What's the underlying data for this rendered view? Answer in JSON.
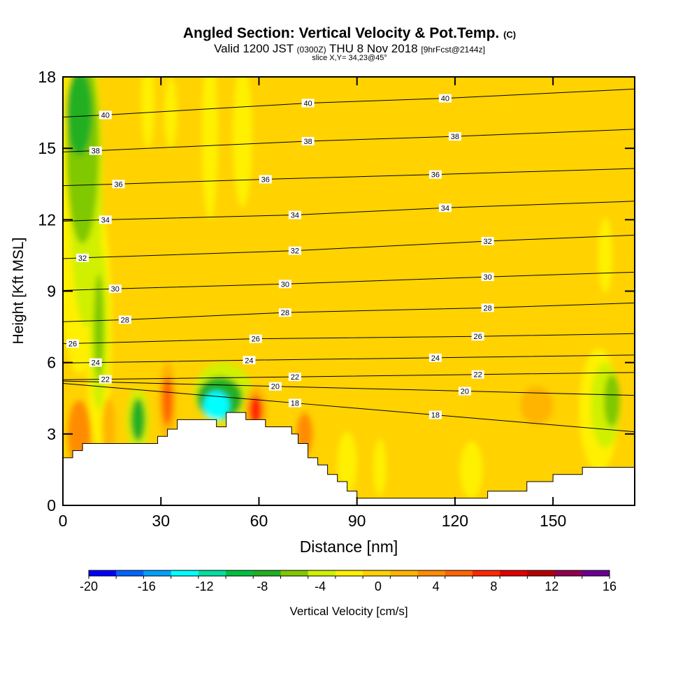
{
  "chart_data": {
    "type": "heatmap",
    "title_main": "Angled Section: Vertical Velocity & Pot.Temp.",
    "title_unit": "(C)",
    "subtitle_a": "Valid 1200 JST",
    "subtitle_b": "(0300Z)",
    "subtitle_c": "THU 8 Nov 2018",
    "subtitle_d": "[9hrFcst@2144z]",
    "slice_label": "slice X,Y= 34,23@45°",
    "xlabel": "Distance [nm]",
    "ylabel": "Height [Kft MSL]",
    "xlim": [
      0,
      175
    ],
    "ylim": [
      0,
      18
    ],
    "x_ticks": [
      0,
      30,
      60,
      90,
      120,
      150
    ],
    "y_ticks": [
      0,
      3,
      6,
      9,
      12,
      15,
      18
    ],
    "colorbar": {
      "label": "Vertical Velocity [cm/s]",
      "min": -20,
      "max": 16,
      "step": 2,
      "tick_labels": [
        -20,
        -16,
        -12,
        -8,
        -4,
        0,
        4,
        8,
        12,
        16
      ],
      "colors": [
        "#0000ff",
        "#0064ff",
        "#00a0ff",
        "#00ffff",
        "#00e0a0",
        "#00c040",
        "#20b020",
        "#80c800",
        "#d0f000",
        "#fff000",
        "#ffd200",
        "#ffb400",
        "#ff8c00",
        "#ff6400",
        "#ff2800",
        "#e00000",
        "#b40000",
        "#900050",
        "#6a0090"
      ]
    },
    "background_value": 0,
    "terrain_profile": [
      [
        0,
        2
      ],
      [
        3,
        2
      ],
      [
        3,
        2.3
      ],
      [
        6,
        2.3
      ],
      [
        6,
        2.6
      ],
      [
        21,
        2.6
      ],
      [
        21,
        2.6
      ],
      [
        29,
        2.6
      ],
      [
        29,
        2.9
      ],
      [
        32,
        2.9
      ],
      [
        32,
        3.2
      ],
      [
        35,
        3.2
      ],
      [
        35,
        3.6
      ],
      [
        47,
        3.6
      ],
      [
        47,
        3.3
      ],
      [
        50,
        3.3
      ],
      [
        50,
        3.9
      ],
      [
        56,
        3.9
      ],
      [
        56,
        3.6
      ],
      [
        62,
        3.6
      ],
      [
        62,
        3.3
      ],
      [
        70,
        3.3
      ],
      [
        70,
        3.0
      ],
      [
        72,
        3.0
      ],
      [
        72,
        2.6
      ],
      [
        75,
        2.6
      ],
      [
        75,
        2.0
      ],
      [
        78,
        2.0
      ],
      [
        78,
        1.7
      ],
      [
        81,
        1.7
      ],
      [
        81,
        1.3
      ],
      [
        84,
        1.3
      ],
      [
        84,
        1.0
      ],
      [
        87,
        1.0
      ],
      [
        87,
        0.6
      ],
      [
        90,
        0.6
      ],
      [
        90,
        0.3
      ],
      [
        130,
        0.3
      ],
      [
        130,
        0.6
      ],
      [
        142,
        0.6
      ],
      [
        142,
        1.0
      ],
      [
        150,
        1.0
      ],
      [
        150,
        1.3
      ],
      [
        159,
        1.3
      ],
      [
        159,
        1.6
      ],
      [
        164,
        1.6
      ],
      [
        164,
        1.6
      ],
      [
        175,
        1.6
      ]
    ],
    "theta_labels": [
      {
        "v": "40",
        "x": 13,
        "y": 16.4
      },
      {
        "v": "40",
        "x": 75,
        "y": 16.9
      },
      {
        "v": "40",
        "x": 117,
        "y": 17.1
      },
      {
        "v": "38",
        "x": 10,
        "y": 14.9
      },
      {
        "v": "38",
        "x": 75,
        "y": 15.3
      },
      {
        "v": "38",
        "x": 120,
        "y": 15.5
      },
      {
        "v": "36",
        "x": 17,
        "y": 13.5
      },
      {
        "v": "36",
        "x": 62,
        "y": 13.7
      },
      {
        "v": "36",
        "x": 114,
        "y": 13.9
      },
      {
        "v": "34",
        "x": 13,
        "y": 12.0
      },
      {
        "v": "34",
        "x": 71,
        "y": 12.2
      },
      {
        "v": "34",
        "x": 117,
        "y": 12.5
      },
      {
        "v": "32",
        "x": 6,
        "y": 10.4
      },
      {
        "v": "32",
        "x": 71,
        "y": 10.7
      },
      {
        "v": "32",
        "x": 130,
        "y": 11.1
      },
      {
        "v": "30",
        "x": 16,
        "y": 9.1
      },
      {
        "v": "30",
        "x": 68,
        "y": 9.3
      },
      {
        "v": "30",
        "x": 130,
        "y": 9.6
      },
      {
        "v": "28",
        "x": 19,
        "y": 7.8
      },
      {
        "v": "28",
        "x": 68,
        "y": 8.1
      },
      {
        "v": "28",
        "x": 130,
        "y": 8.3
      },
      {
        "v": "26",
        "x": 3,
        "y": 6.8
      },
      {
        "v": "26",
        "x": 59,
        "y": 7.0
      },
      {
        "v": "26",
        "x": 127,
        "y": 7.1
      },
      {
        "v": "24",
        "x": 10,
        "y": 6.0
      },
      {
        "v": "24",
        "x": 57,
        "y": 6.1
      },
      {
        "v": "24",
        "x": 114,
        "y": 6.2
      },
      {
        "v": "22",
        "x": 13,
        "y": 5.3
      },
      {
        "v": "22",
        "x": 71,
        "y": 5.4
      },
      {
        "v": "22",
        "x": 127,
        "y": 5.5
      },
      {
        "v": "20",
        "x": 65,
        "y": 5.0
      },
      {
        "v": "20",
        "x": 123,
        "y": 4.8
      },
      {
        "v": "18",
        "x": 71,
        "y": 4.3
      },
      {
        "v": "18",
        "x": 114,
        "y": 3.8
      }
    ],
    "velocity_features": [
      {
        "v": -8,
        "x": 5,
        "y": 16.5,
        "rx": 4,
        "ry": 1.8
      },
      {
        "v": -6,
        "x": 6,
        "y": 15.0,
        "rx": 5,
        "ry": 4
      },
      {
        "v": -4,
        "x": 7,
        "y": 13.5,
        "rx": 5,
        "ry": 6
      },
      {
        "v": -2,
        "x": 5,
        "y": 12.5,
        "rx": 7,
        "ry": 7
      },
      {
        "v": -6,
        "x": 11,
        "y": 7.5,
        "rx": 1.5,
        "ry": 2.2
      },
      {
        "v": -4,
        "x": 11,
        "y": 7.5,
        "rx": 2.8,
        "ry": 3.5
      },
      {
        "v": -2,
        "x": 11,
        "y": 7.5,
        "rx": 4,
        "ry": 5
      },
      {
        "v": -2,
        "x": 26,
        "y": 17.0,
        "rx": 2,
        "ry": 2
      },
      {
        "v": -2,
        "x": 33,
        "y": 16.5,
        "rx": 2,
        "ry": 1.5
      },
      {
        "v": -2,
        "x": 45,
        "y": 15.5,
        "rx": 2.5,
        "ry": 3.5
      },
      {
        "v": -2,
        "x": 55,
        "y": 15.5,
        "rx": 3,
        "ry": 3
      },
      {
        "v": -8,
        "x": 23,
        "y": 3.6,
        "rx": 2.2,
        "ry": 0.9
      },
      {
        "v": -4,
        "x": 23,
        "y": 3.6,
        "rx": 3.5,
        "ry": 1.3
      },
      {
        "v": -14,
        "x": 47,
        "y": 4.2,
        "rx": 4,
        "ry": 0.6
      },
      {
        "v": -8,
        "x": 48,
        "y": 4.5,
        "rx": 7,
        "ry": 0.9
      },
      {
        "v": -4,
        "x": 49,
        "y": 4.7,
        "rx": 9,
        "ry": 1.3
      },
      {
        "v": 8,
        "x": 32,
        "y": 4.4,
        "rx": 1.6,
        "ry": 1.0
      },
      {
        "v": 4,
        "x": 32,
        "y": 4.4,
        "rx": 2.6,
        "ry": 1.6
      },
      {
        "v": 10,
        "x": 59,
        "y": 4.0,
        "rx": 2.0,
        "ry": 0.6
      },
      {
        "v": 4,
        "x": 59,
        "y": 4.0,
        "rx": 3.5,
        "ry": 1.0
      },
      {
        "v": 6,
        "x": 5,
        "y": 3.0,
        "rx": 3.5,
        "ry": 1.4
      },
      {
        "v": 4,
        "x": 14,
        "y": 3.3,
        "rx": 2,
        "ry": 1.2
      },
      {
        "v": 6,
        "x": 74,
        "y": 3.0,
        "rx": 2.5,
        "ry": 0.9
      },
      {
        "v": 2,
        "x": 74,
        "y": 3.3,
        "rx": 5,
        "ry": 1.6
      },
      {
        "v": -2,
        "x": 87,
        "y": 1.8,
        "rx": 3,
        "ry": 1.3
      },
      {
        "v": -2,
        "x": 97,
        "y": 1.6,
        "rx": 2,
        "ry": 1.2
      },
      {
        "v": -2,
        "x": 125,
        "y": 1.5,
        "rx": 3.5,
        "ry": 1.2
      },
      {
        "v": 2,
        "x": 40,
        "y": 8.5,
        "rx": 6,
        "ry": 1.4
      },
      {
        "v": 2,
        "x": 58,
        "y": 9.8,
        "rx": 2.2,
        "ry": 2.2
      },
      {
        "v": 2,
        "x": 90,
        "y": 8.8,
        "rx": 9,
        "ry": 1.3
      },
      {
        "v": 2,
        "x": 122,
        "y": 9.5,
        "rx": 7,
        "ry": 1.2
      },
      {
        "v": 2,
        "x": 21,
        "y": 12.5,
        "rx": 3,
        "ry": 1.8
      },
      {
        "v": 2,
        "x": 155,
        "y": 15.0,
        "rx": 3,
        "ry": 2.5
      },
      {
        "v": 4,
        "x": 145,
        "y": 4.2,
        "rx": 5,
        "ry": 0.8
      },
      {
        "v": 2,
        "x": 145,
        "y": 4.0,
        "rx": 12,
        "ry": 1.6
      },
      {
        "v": 2,
        "x": 110,
        "y": 3.2,
        "rx": 6,
        "ry": 2.0
      },
      {
        "v": -2,
        "x": 166,
        "y": 10.5,
        "rx": 2.2,
        "ry": 1.6
      },
      {
        "v": -6,
        "x": 168,
        "y": 4.4,
        "rx": 2.4,
        "ry": 1.1
      },
      {
        "v": -4,
        "x": 166,
        "y": 4.2,
        "rx": 4.5,
        "ry": 1.8
      },
      {
        "v": -2,
        "x": 164,
        "y": 4.0,
        "rx": 6,
        "ry": 2.6
      },
      {
        "v": 2,
        "x": 174,
        "y": 10.0,
        "rx": 1.2,
        "ry": 6
      }
    ]
  }
}
